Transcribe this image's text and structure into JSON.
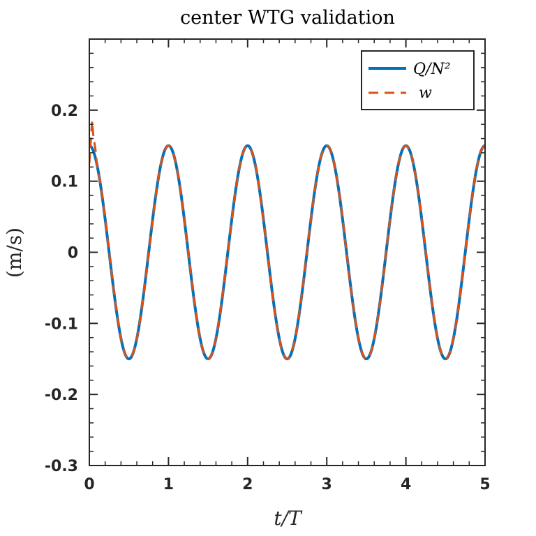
{
  "chart_data": {
    "type": "line",
    "title": "center WTG validation",
    "xlabel": "t/T",
    "ylabel": "(m/s)",
    "xlim": [
      0,
      5
    ],
    "ylim": [
      -0.3,
      0.3
    ],
    "xticks": [
      0,
      1,
      2,
      3,
      4,
      5
    ],
    "xtick_labels": [
      "0",
      "1",
      "2",
      "3",
      "4",
      "5"
    ],
    "yticks": [
      -0.3,
      -0.2,
      -0.1,
      0,
      0.1,
      0.2
    ],
    "ytick_labels": [
      "-0.3",
      "-0.2",
      "-0.1",
      "0",
      "0.1",
      "0.2"
    ],
    "grid": false,
    "legend_position": "top-right",
    "series": [
      {
        "name": "Q/N²",
        "color": "#0072BD",
        "style": "solid",
        "amplitude": 0.15,
        "period": 1,
        "function": "0.15*cos(2*pi*t)"
      },
      {
        "name": "w",
        "color": "#D95319",
        "style": "dashed",
        "amplitude": 0.15,
        "period": 1,
        "function": "0.15*cos(2*pi*t) with startup transient near t=0",
        "transient": [
          {
            "t": 0.0,
            "v": 0.125
          },
          {
            "t": 0.02,
            "v": 0.16
          },
          {
            "t": 0.035,
            "v": 0.185
          },
          {
            "t": 0.05,
            "v": 0.165
          },
          {
            "t": 0.07,
            "v": 0.15
          },
          {
            "t": 0.09,
            "v": 0.135
          }
        ]
      }
    ]
  }
}
